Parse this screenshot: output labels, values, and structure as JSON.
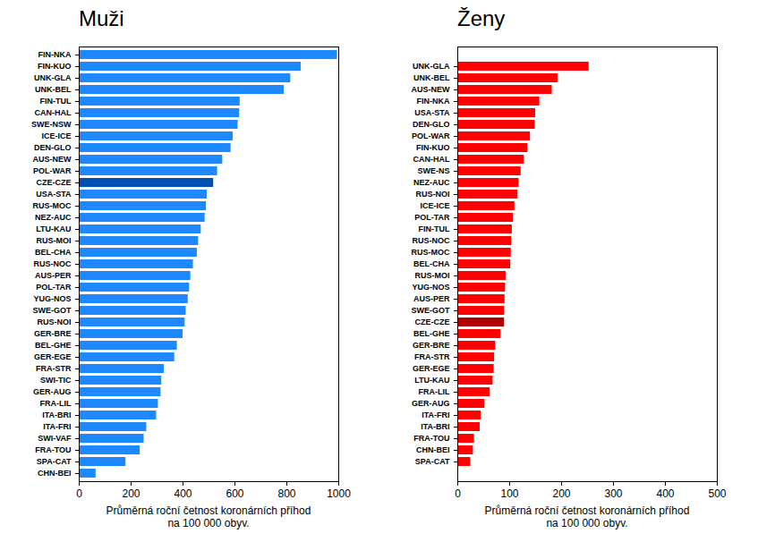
{
  "chart_data": [
    {
      "type": "bar",
      "orientation": "horizontal",
      "title": "Muži",
      "xlabel": "Průměrná roční četnost koronárních příhod\nna 100 000 obyv.",
      "categories": [
        "FIN-NKA",
        "FIN-KUO",
        "UNK-GLA",
        "UNK-BEL",
        "FIN-TUL",
        "CAN-HAL",
        "SWE-NSW",
        "ICE-ICE",
        "DEN-GLO",
        "AUS-NEW",
        "POL-WAR",
        "CZE-CZE",
        "USA-STA",
        "RUS-MOC",
        "NEZ-AUC",
        "LTU-KAU",
        "RUS-MOI",
        "BEL-CHA",
        "RUS-NOC",
        "AUS-PER",
        "POL-TAR",
        "YUG-NOS",
        "SWE-GOT",
        "RUS-NOI",
        "GER-BRE",
        "BEL-GHE",
        "GER-EGE",
        "FRA-STR",
        "SWI-TIC",
        "GER-AUG",
        "FRA-LIL",
        "ITA-BRI",
        "ITA-FRI",
        "SWI-VAF",
        "FRA-TOU",
        "SPA-CAT",
        "CHN-BEI"
      ],
      "values": [
        995,
        855,
        815,
        790,
        620,
        618,
        612,
        593,
        585,
        553,
        533,
        518,
        493,
        490,
        485,
        470,
        460,
        455,
        440,
        430,
        425,
        420,
        412,
        408,
        400,
        378,
        368,
        328,
        318,
        315,
        305,
        298,
        260,
        250,
        235,
        180,
        65
      ],
      "colors": [
        "#1e88ff",
        "#1e88ff",
        "#1e88ff",
        "#1e88ff",
        "#1e88ff",
        "#1e88ff",
        "#1e88ff",
        "#1e88ff",
        "#1e88ff",
        "#1e88ff",
        "#1e88ff",
        "#0050b4",
        "#1e88ff",
        "#1e88ff",
        "#1e88ff",
        "#1e88ff",
        "#1e88ff",
        "#1e88ff",
        "#1e88ff",
        "#1e88ff",
        "#1e88ff",
        "#1e88ff",
        "#1e88ff",
        "#1e88ff",
        "#1e88ff",
        "#1e88ff",
        "#1e88ff",
        "#1e88ff",
        "#1e88ff",
        "#1e88ff",
        "#1e88ff",
        "#1e88ff",
        "#1e88ff",
        "#1e88ff",
        "#1e88ff",
        "#1e88ff",
        "#1e88ff"
      ],
      "xlim": [
        0,
        1000
      ],
      "xticks": [
        0,
        200,
        400,
        600,
        800,
        1000
      ]
    },
    {
      "type": "bar",
      "orientation": "horizontal",
      "title": "Ženy",
      "xlabel": "Průměrná roční četnost koronárních příhod\nna 100 000 obyv.",
      "categories": [
        "UNK-GLA",
        "UNK-BEL",
        "AUS-NEW",
        "FIN-NKA",
        "USA-STA",
        "DEN-GLO",
        "POL-WAR",
        "FIN-KUO",
        "CAN-HAL",
        "SWE-NS",
        "NEZ-AUC",
        "RUS-NOI",
        "ICE-ICE",
        "POL-TAR",
        "FIN-TUL",
        "RUS-NOC",
        "RUS-MOC",
        "BEL-CHA",
        "RUS-MOI",
        "YUG-NOS",
        "AUS-PER",
        "SWE-GOT",
        "CZE-CZE",
        "BEL-GHE",
        "GER-BRE",
        "FRA-STR",
        "GER-EGE",
        "LTU-KAU",
        "FRA-LIL",
        "GER-AUG",
        "ITA-FRI",
        "ITA-BRI",
        "FRA-TOU",
        "CHN-BEI",
        "SPA-CAT"
      ],
      "values": [
        253,
        193,
        182,
        158,
        150,
        149,
        140,
        135,
        128,
        122,
        118,
        116,
        110,
        107,
        105,
        104,
        103,
        102,
        93,
        92,
        91,
        90,
        90,
        83,
        73,
        71,
        70,
        68,
        62,
        52,
        45,
        43,
        32,
        30,
        25
      ],
      "colors": [
        "#ff0000",
        "#ff0000",
        "#ff0000",
        "#ff0000",
        "#ff0000",
        "#ff0000",
        "#ff0000",
        "#ff0000",
        "#ff0000",
        "#ff0000",
        "#ff0000",
        "#ff0000",
        "#ff0000",
        "#ff0000",
        "#ff0000",
        "#ff0000",
        "#ff0000",
        "#ff0000",
        "#ff0000",
        "#ff0000",
        "#ff0000",
        "#ff0000",
        "#b00000",
        "#ff0000",
        "#ff0000",
        "#ff0000",
        "#ff0000",
        "#ff0000",
        "#ff0000",
        "#ff0000",
        "#ff0000",
        "#ff0000",
        "#ff0000",
        "#ff0000",
        "#ff0000"
      ],
      "xlim": [
        0,
        500
      ],
      "xticks": [
        0,
        100,
        200,
        300,
        400,
        500
      ]
    }
  ]
}
